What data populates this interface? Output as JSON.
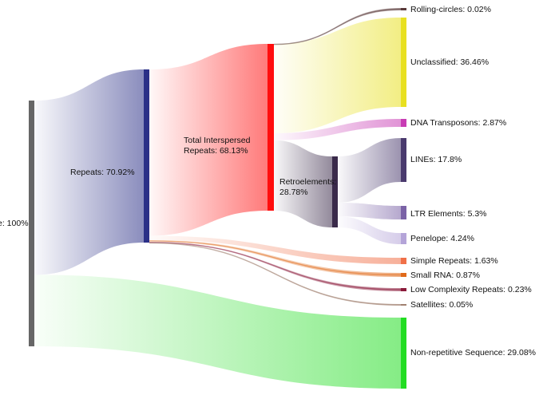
{
  "sankey": {
    "nodes": [
      {
        "id": "genome",
        "label": "e: 100%",
        "color": "#666666"
      },
      {
        "id": "repeats",
        "label": "Repeats: 70.92%",
        "color": "#2b3087"
      },
      {
        "id": "interspersed",
        "label": "Total Interspersed Repeats: 68.13%",
        "color": "#ff0d0d"
      },
      {
        "id": "retro",
        "label": "Retroelements: 28.78%",
        "color": "#3a2a4a"
      },
      {
        "id": "rolling",
        "label": "Rolling-circles: 0.02%",
        "color": "#5a3a3a"
      },
      {
        "id": "unclassified",
        "label": "Unclassified: 36.46%",
        "color": "#e8e020"
      },
      {
        "id": "dna",
        "label": "DNA Transposons: 2.87%",
        "color": "#c83cb4"
      },
      {
        "id": "lines",
        "label": "LINEs: 17.8%",
        "color": "#4a3a6e"
      },
      {
        "id": "ltr",
        "label": "LTR Elements: 5.3%",
        "color": "#7a62a6"
      },
      {
        "id": "penelope",
        "label": "Penelope: 4.24%",
        "color": "#b4a4d8"
      },
      {
        "id": "simple",
        "label": "Simple Repeats: 1.63%",
        "color": "#f07048"
      },
      {
        "id": "smallrna",
        "label": "Small RNA: 0.87%",
        "color": "#e06a1a"
      },
      {
        "id": "lowcomplex",
        "label": "Low Complexity Repeats: 0.23%",
        "color": "#8a1a3a"
      },
      {
        "id": "satellites",
        "label": "Satellites: 0.05%",
        "color": "#a08070"
      },
      {
        "id": "nonrep",
        "label": "Non-repetitive Sequence: 29.08%",
        "color": "#22dd22"
      }
    ],
    "links": [
      {
        "source": "genome",
        "target": "repeats",
        "value": 70.92
      },
      {
        "source": "genome",
        "target": "nonrep",
        "value": 29.08
      },
      {
        "source": "repeats",
        "target": "interspersed",
        "value": 68.13
      },
      {
        "source": "repeats",
        "target": "simple",
        "value": 1.63
      },
      {
        "source": "repeats",
        "target": "smallrna",
        "value": 0.87
      },
      {
        "source": "repeats",
        "target": "lowcomplex",
        "value": 0.23
      },
      {
        "source": "repeats",
        "target": "satellites",
        "value": 0.05
      },
      {
        "source": "interspersed",
        "target": "rolling",
        "value": 0.02
      },
      {
        "source": "interspersed",
        "target": "unclassified",
        "value": 36.46
      },
      {
        "source": "interspersed",
        "target": "dna",
        "value": 2.87
      },
      {
        "source": "interspersed",
        "target": "retro",
        "value": 28.78
      },
      {
        "source": "retro",
        "target": "lines",
        "value": 17.8
      },
      {
        "source": "retro",
        "target": "ltr",
        "value": 5.3
      },
      {
        "source": "retro",
        "target": "penelope",
        "value": 4.24
      }
    ]
  }
}
